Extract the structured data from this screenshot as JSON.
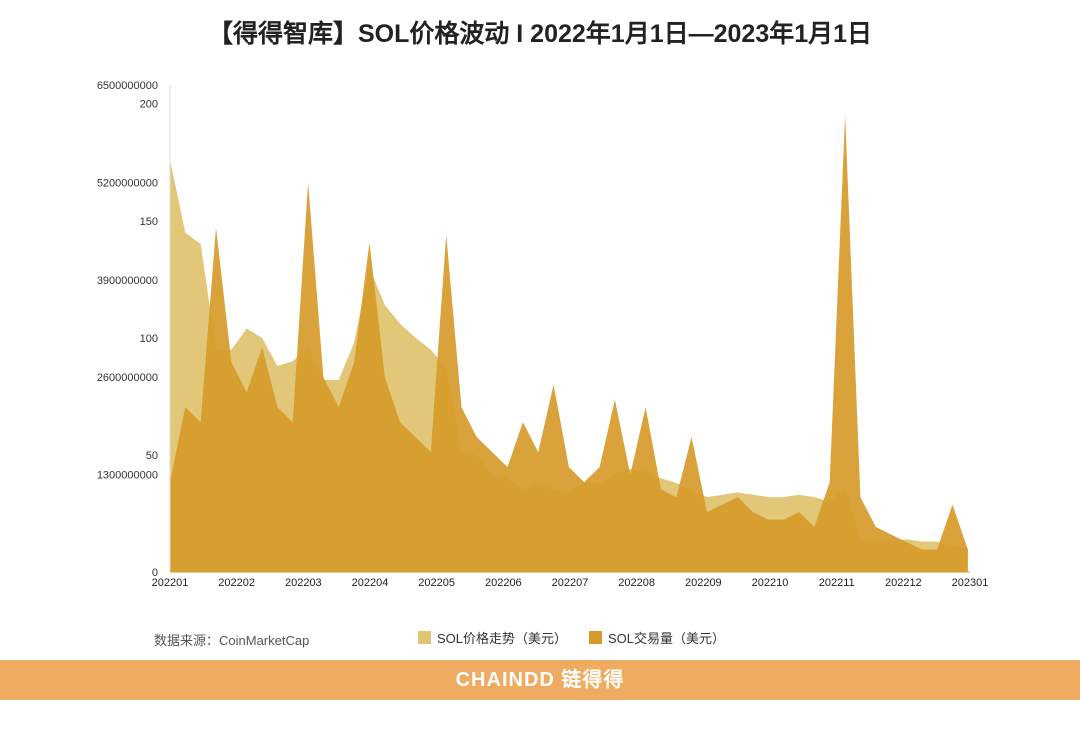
{
  "title": "【得得智库】SOL价格波动 I 2022年1月1日—2023年1月1日",
  "source": "数据来源：CoinMarketCap",
  "banner": "CHAINDD 链得得",
  "colors": {
    "price": "#e0c472",
    "volume": "#d69a2a",
    "banner": "#efac60"
  },
  "chart_data": {
    "type": "area",
    "title": "【得得智库】SOL价格波动 I 2022年1月1日—2023年1月1日",
    "legend_position": "bottom",
    "grid": false,
    "x_ticks": [
      "202201",
      "202202",
      "202203",
      "202204",
      "202205",
      "202206",
      "202207",
      "202208",
      "202209",
      "202210",
      "202211",
      "202212",
      "202301"
    ],
    "price_axis": {
      "ticks": [
        0,
        50,
        100,
        150,
        200
      ],
      "tick_labels": [
        "0",
        "50",
        "100",
        "150",
        "200"
      ],
      "range": [
        0,
        208
      ]
    },
    "volume_axis": {
      "ticks": [
        0,
        1300000000,
        2600000000,
        3900000000,
        5200000000,
        6500000000
      ],
      "tick_labels": [
        "0",
        "1300000000",
        "2600000000",
        "3900000000",
        "5200000000",
        "6500000000"
      ],
      "range": [
        0,
        6500000000
      ]
    },
    "x": [
      "2022-01-01",
      "2022-01-08",
      "2022-01-15",
      "2022-01-22",
      "2022-01-29",
      "2022-02-05",
      "2022-02-12",
      "2022-02-19",
      "2022-02-26",
      "2022-03-05",
      "2022-03-12",
      "2022-03-19",
      "2022-03-26",
      "2022-04-02",
      "2022-04-09",
      "2022-04-16",
      "2022-04-23",
      "2022-04-30",
      "2022-05-07",
      "2022-05-14",
      "2022-05-21",
      "2022-05-28",
      "2022-06-04",
      "2022-06-11",
      "2022-06-18",
      "2022-06-25",
      "2022-07-02",
      "2022-07-09",
      "2022-07-16",
      "2022-07-23",
      "2022-07-30",
      "2022-08-06",
      "2022-08-13",
      "2022-08-20",
      "2022-08-27",
      "2022-09-03",
      "2022-09-10",
      "2022-09-17",
      "2022-09-24",
      "2022-10-01",
      "2022-10-08",
      "2022-10-15",
      "2022-10-22",
      "2022-10-29",
      "2022-11-05",
      "2022-11-12",
      "2022-11-19",
      "2022-11-26",
      "2022-12-03",
      "2022-12-10",
      "2022-12-17",
      "2022-12-24",
      "2022-12-31"
    ],
    "series": [
      {
        "name": "SOL价格走势（美元）",
        "axis": "price",
        "values": [
          176,
          145,
          140,
          95,
          95,
          104,
          100,
          88,
          90,
          96,
          82,
          82,
          98,
          130,
          114,
          106,
          100,
          95,
          87,
          52,
          50,
          42,
          40,
          35,
          38,
          35,
          34,
          38,
          38,
          42,
          44,
          43,
          40,
          38,
          35,
          32,
          33,
          34,
          33,
          32,
          32,
          33,
          32,
          30,
          36,
          14,
          14,
          13,
          14,
          13,
          13,
          11,
          10
        ]
      },
      {
        "name": "SOL交易量（美元）",
        "axis": "volume",
        "values": [
          1200000000,
          2200000000,
          2000000000,
          4600000000,
          2800000000,
          2400000000,
          3000000000,
          2200000000,
          2000000000,
          5200000000,
          2600000000,
          2200000000,
          2800000000,
          4400000000,
          2600000000,
          2000000000,
          1800000000,
          1600000000,
          4500000000,
          2200000000,
          1800000000,
          1600000000,
          1400000000,
          2000000000,
          1600000000,
          2500000000,
          1400000000,
          1200000000,
          1400000000,
          2300000000,
          1300000000,
          2200000000,
          1100000000,
          1000000000,
          1800000000,
          800000000,
          900000000,
          1000000000,
          800000000,
          700000000,
          700000000,
          800000000,
          600000000,
          1200000000,
          6100000000,
          1000000000,
          600000000,
          500000000,
          400000000,
          300000000,
          300000000,
          900000000,
          300000000
        ]
      }
    ]
  }
}
